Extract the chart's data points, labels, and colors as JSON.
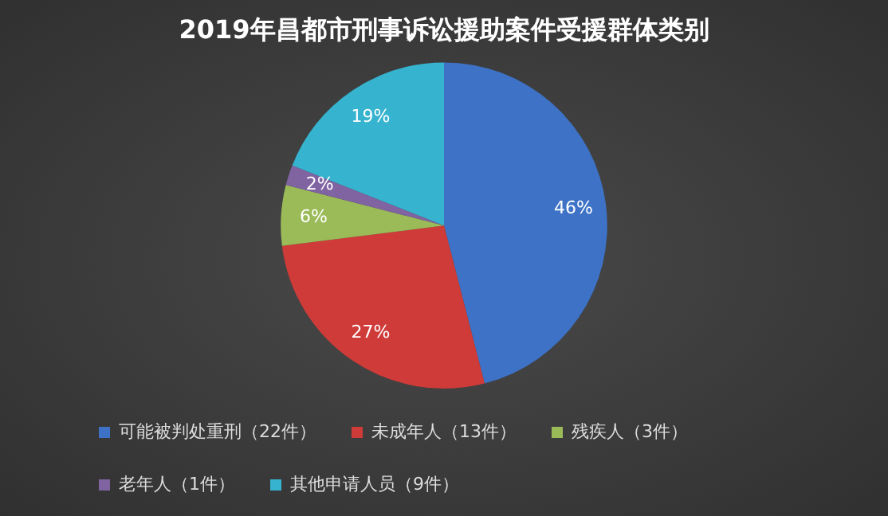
{
  "chart_data": {
    "type": "pie",
    "title": "2019年昌都市刑事诉讼援助案件受援群体类别",
    "categories": [
      "可能被判处重刑（22件）",
      "未成年人（13件）",
      "残疾人（3件）",
      "老年人（1件）",
      "其他申请人员（9件）"
    ],
    "values": [
      46,
      27,
      6,
      2,
      19
    ],
    "colors": [
      "#3d72c6",
      "#cf3b38",
      "#9bbb59",
      "#8064a2",
      "#36b3cf"
    ],
    "value_labels": [
      "46%",
      "27%",
      "6%",
      "2%",
      "19%"
    ],
    "legend": "bottom"
  }
}
